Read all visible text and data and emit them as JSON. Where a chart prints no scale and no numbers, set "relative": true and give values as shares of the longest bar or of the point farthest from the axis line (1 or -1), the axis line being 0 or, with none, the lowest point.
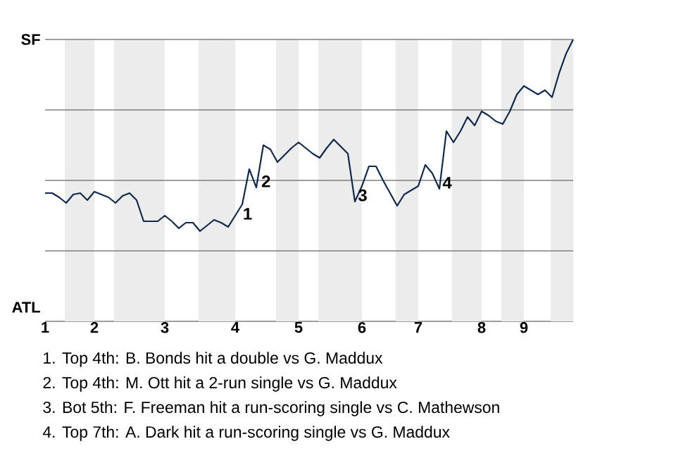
{
  "chart_data": {
    "type": "line",
    "relative": true,
    "categories": [
      "1",
      null,
      null,
      null,
      null,
      null,
      null,
      "2",
      null,
      null,
      null,
      null,
      null,
      null,
      null,
      null,
      null,
      "3",
      null,
      null,
      null,
      null,
      null,
      null,
      null,
      null,
      null,
      "4",
      null,
      null,
      null,
      null,
      null,
      null,
      null,
      null,
      "5",
      null,
      null,
      null,
      null,
      null,
      null,
      null,
      null,
      "6",
      null,
      null,
      null,
      null,
      null,
      null,
      null,
      "7",
      null,
      null,
      null,
      null,
      null,
      null,
      null,
      null,
      "8",
      null,
      null,
      null,
      null,
      null,
      "9",
      null,
      null,
      null,
      null,
      null,
      null,
      null
    ],
    "series": [
      {
        "color": "#13294b",
        "values": [
          0.455,
          0.455,
          0.44,
          0.42,
          0.45,
          0.455,
          0.43,
          0.46,
          0.45,
          0.44,
          0.42,
          0.445,
          0.455,
          0.43,
          0.355,
          0.355,
          0.355,
          0.375,
          0.355,
          0.33,
          0.35,
          0.35,
          0.32,
          0.34,
          0.36,
          0.35,
          0.335,
          0.375,
          0.415,
          0.54,
          0.475,
          0.625,
          0.61,
          0.565,
          0.59,
          0.615,
          0.635,
          0.615,
          0.595,
          0.58,
          0.615,
          0.645,
          0.62,
          0.595,
          0.425,
          0.48,
          0.55,
          0.55,
          0.5,
          0.455,
          0.41,
          0.45,
          0.465,
          0.48,
          0.555,
          0.525,
          0.47,
          0.675,
          0.635,
          0.675,
          0.725,
          0.695,
          0.745,
          0.73,
          0.71,
          0.7,
          0.745,
          0.805,
          0.835,
          0.82,
          0.805,
          0.82,
          0.795,
          0.88,
          0.95,
          1.0
        ]
      }
    ],
    "annotations": [
      "SF",
      "ATL",
      "1",
      "2",
      "3",
      "4",
      "1. Top 4th: B. Bonds hit a double vs G. Maddux",
      "2. Top 4th: M. Ott hit a 2-run single vs G. Maddux",
      "3. Bot 5th: F. Freeman hit a run-scoring single vs C. Mathewson",
      "4. Top 7th: A. Dark hit a run-scoring single vs G. Maddux"
    ]
  }
}
